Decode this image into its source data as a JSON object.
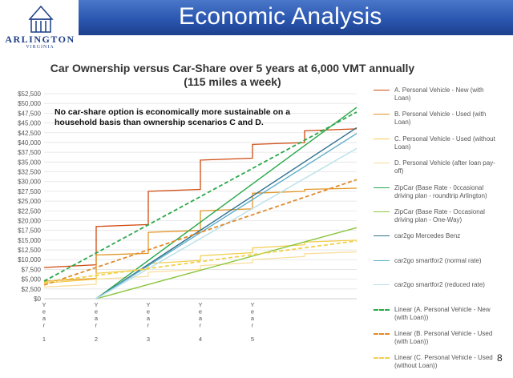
{
  "header": {
    "title": "Economic Analysis",
    "logo_text": "ARLINGTON",
    "logo_subtext": "VIRGINIA"
  },
  "annotation": "No car-share option is economically more sustainable on a household basis than ownership scenarios C and D.",
  "page_number": "8",
  "chart_data": {
    "type": "line",
    "title": "Car Ownership versus Car-Share over 5 years at 6,000 VMT annually",
    "subtitle": "(115 miles a week)",
    "xlabel": "",
    "ylabel": "",
    "ylim": [
      0,
      52500
    ],
    "ytick_step": 2500,
    "y_tick_labels": [
      "$0",
      "$2,500",
      "$5,000",
      "$7,500",
      "$10,000",
      "$12,500",
      "$15,000",
      "$17,500",
      "$20,000",
      "$22,500",
      "$25,000",
      "$27,500",
      "$30,000",
      "$32,500",
      "$35,000",
      "$37,500",
      "$40,000",
      "$42,500",
      "$45,000",
      "$47,500",
      "$50,000",
      "$52,500"
    ],
    "x_tick_labels": [
      {
        "letters": [
          "Y",
          "e",
          "a",
          "r"
        ],
        "num": "1"
      },
      {
        "letters": [
          "Y",
          "e",
          "a",
          "r"
        ],
        "num": "2"
      },
      {
        "letters": [
          "Y",
          "e",
          "a",
          "r"
        ],
        "num": "3"
      },
      {
        "letters": [
          "Y",
          "e",
          "a",
          "r"
        ],
        "num": "4"
      },
      {
        "letters": [
          "Y",
          "e",
          "a",
          "r"
        ],
        "num": "5"
      }
    ],
    "xlim": [
      0,
      6
    ],
    "grid": true,
    "legend_position": "right",
    "series": [
      {
        "name": "A. Personal Vehicle - New (with Loan)",
        "color": "#d04a10",
        "dash": "none",
        "width": 1.3,
        "x": [
          0,
          1,
          1,
          2,
          2,
          3,
          3,
          4,
          4,
          5,
          5,
          6
        ],
        "y": [
          8000,
          8700,
          18500,
          19000,
          27500,
          28000,
          35500,
          36000,
          39500,
          40000,
          43000,
          43500
        ]
      },
      {
        "name": "B. Personal Vehicle - Used (with Loan)",
        "color": "#e39526",
        "dash": "none",
        "width": 1.3,
        "x": [
          0,
          1,
          1,
          2,
          2,
          3,
          3,
          4,
          4,
          5,
          5,
          6
        ],
        "y": [
          4500,
          5200,
          11200,
          11600,
          17000,
          17500,
          22500,
          23000,
          27000,
          27500,
          28000,
          28300
        ]
      },
      {
        "name": "C. Personal Vehicle - Used (without Loan)",
        "color": "#f2cd4d",
        "dash": "none",
        "width": 1.2,
        "x": [
          0,
          1,
          1,
          2,
          2,
          3,
          3,
          4,
          4,
          5,
          5,
          6
        ],
        "y": [
          4000,
          5000,
          6500,
          7500,
          9000,
          9800,
          11000,
          11800,
          13000,
          13800,
          14500,
          15000
        ]
      },
      {
        "name": "D. Personal Vehicle (after loan pay-off)",
        "color": "#f8dc96",
        "dash": "none",
        "width": 1.2,
        "x": [
          0,
          1,
          1,
          2,
          2,
          3,
          3,
          4,
          4,
          5,
          5,
          6
        ],
        "y": [
          3000,
          3700,
          5000,
          5700,
          6800,
          7500,
          8500,
          9200,
          10000,
          10800,
          11500,
          12000
        ]
      },
      {
        "name": "ZipCar (Base Rate - 0ccasional driving plan - roundtrip Arlington)",
        "color": "#27a84a",
        "dash": "none",
        "width": 1.4,
        "x": [
          1,
          6
        ],
        "y": [
          0,
          49000
        ]
      },
      {
        "name": "ZipCar (Base Rate - Occasional driving plan - One-Way)",
        "color": "#8cc63f",
        "dash": "none",
        "width": 1.4,
        "x": [
          1,
          6
        ],
        "y": [
          0,
          18200
        ]
      },
      {
        "name": "car2go Mercedes Benz",
        "color": "#2e6f8e",
        "dash": "none",
        "width": 1.4,
        "x": [
          1,
          6
        ],
        "y": [
          0,
          43800
        ]
      },
      {
        "name": "car2go smartfor2 (normal  rate)",
        "color": "#5eaec9",
        "dash": "none",
        "width": 1.4,
        "x": [
          1,
          6
        ],
        "y": [
          0,
          42300
        ]
      },
      {
        "name": "car2go smartfor2 (reduced rate)",
        "color": "#b8e0ea",
        "dash": "none",
        "width": 1.4,
        "x": [
          1,
          6
        ],
        "y": [
          0,
          38500
        ]
      },
      {
        "name": "Linear (A. Personal Vehicle - New (with Loan))",
        "color": "#2aa84a",
        "dash": "5,3",
        "width": 1.8,
        "x": [
          0,
          6
        ],
        "y": [
          4500,
          47800
        ]
      },
      {
        "name": "Linear (B. Personal Vehicle - Used (with Loan))",
        "color": "#e08a2a",
        "dash": "5,3",
        "width": 1.8,
        "x": [
          0,
          6
        ],
        "y": [
          3500,
          30500
        ]
      },
      {
        "name": "Linear (C. Personal Vehicle - Used (without Loan))",
        "color": "#f2d04a",
        "dash": "5,3",
        "width": 1.8,
        "x": [
          0,
          6
        ],
        "y": [
          4200,
          14800
        ]
      }
    ]
  }
}
